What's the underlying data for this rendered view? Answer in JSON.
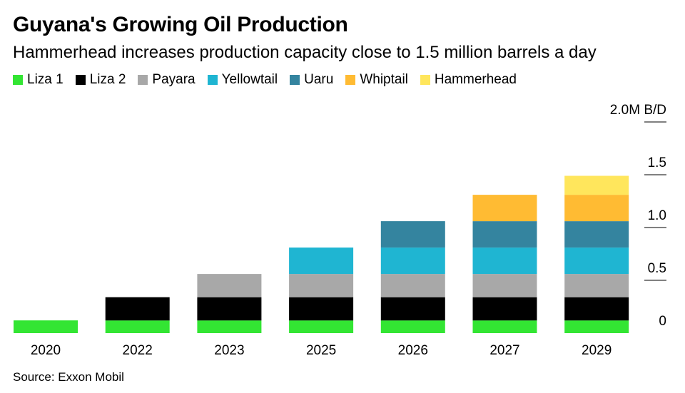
{
  "title": "Guyana's Growing Oil Production",
  "subtitle": "Hammerhead increases production capacity close to 1.5 million barrels a day",
  "source": "Source: Exxon Mobil",
  "chart_data": {
    "type": "bar",
    "stacked": true,
    "categories": [
      "2020",
      "2022",
      "2023",
      "2025",
      "2026",
      "2027",
      "2029"
    ],
    "series": [
      {
        "name": "Liza 1",
        "color": "#33e533",
        "values": [
          0.12,
          0.12,
          0.12,
          0.12,
          0.12,
          0.12,
          0.12
        ]
      },
      {
        "name": "Liza 2",
        "color": "#000000",
        "values": [
          0,
          0.22,
          0.22,
          0.22,
          0.22,
          0.22,
          0.22
        ]
      },
      {
        "name": "Payara",
        "color": "#a8a8a8",
        "values": [
          0,
          0,
          0.22,
          0.22,
          0.22,
          0.22,
          0.22
        ]
      },
      {
        "name": "Yellowtail",
        "color": "#1fb5d2",
        "values": [
          0,
          0,
          0,
          0.25,
          0.25,
          0.25,
          0.25
        ]
      },
      {
        "name": "Uaru",
        "color": "#34849f",
        "values": [
          0,
          0,
          0,
          0,
          0.25,
          0.25,
          0.25
        ]
      },
      {
        "name": "Whiptail",
        "color": "#ffbb33",
        "values": [
          0,
          0,
          0,
          0,
          0,
          0.25,
          0.25
        ]
      },
      {
        "name": "Hammerhead",
        "color": "#ffe65c",
        "values": [
          0,
          0,
          0,
          0,
          0,
          0,
          0.18
        ]
      }
    ],
    "y_ticks": [
      {
        "value": 0,
        "label": "0"
      },
      {
        "value": 0.5,
        "label": "0.5"
      },
      {
        "value": 1.0,
        "label": "1.0"
      },
      {
        "value": 1.5,
        "label": "1.5"
      },
      {
        "value": 2.0,
        "label": "2.0M B/D"
      }
    ],
    "ylim": [
      0,
      2.0
    ],
    "y_axis_position": "right",
    "legend_position": "top-left",
    "grid": false
  }
}
